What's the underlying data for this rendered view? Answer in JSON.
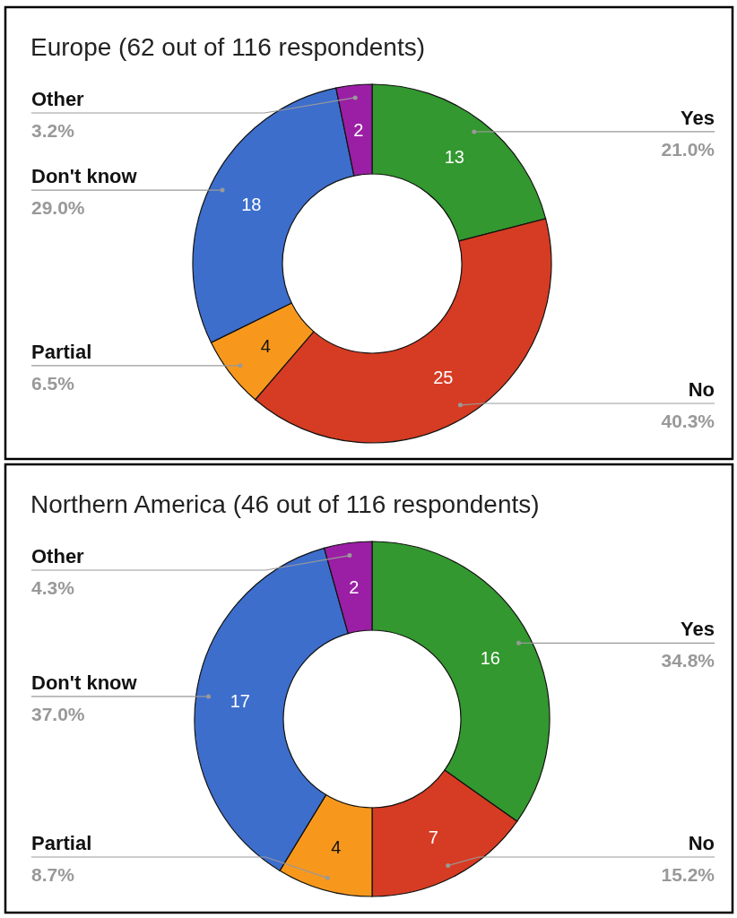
{
  "chart_data": [
    {
      "type": "donut",
      "title": "Europe (62 out of 116 respondents)",
      "categories": [
        "Yes",
        "No",
        "Partial",
        "Don't know",
        "Other"
      ],
      "values": [
        13,
        25,
        4,
        18,
        2
      ],
      "colors": [
        "#33982f",
        "#d63c23",
        "#f7981d",
        "#3d6ecc",
        "#9b1fa4"
      ],
      "data_labels": true,
      "annotations": [
        {
          "text": "21.0%",
          "x": "Yes"
        },
        {
          "text": "40.3%",
          "x": "No"
        },
        {
          "text": "6.5%",
          "x": "Partial"
        },
        {
          "text": "29.0%",
          "x": "Don't know"
        },
        {
          "text": "3.2%",
          "x": "Other"
        }
      ]
    },
    {
      "type": "donut",
      "title": "Northern America (46 out of 116 respondents)",
      "categories": [
        "Yes",
        "No",
        "Partial",
        "Don't know",
        "Other"
      ],
      "values": [
        16,
        7,
        4,
        17,
        2
      ],
      "colors": [
        "#33982f",
        "#d63c23",
        "#f7981d",
        "#3d6ecc",
        "#9b1fa4"
      ],
      "data_labels": true,
      "annotations": [
        {
          "text": "34.8%",
          "x": "Yes"
        },
        {
          "text": "15.2%",
          "x": "No"
        },
        {
          "text": "8.7%",
          "x": "Partial"
        },
        {
          "text": "37.0%",
          "x": "Don't know"
        },
        {
          "text": "4.3%",
          "x": "Other"
        }
      ]
    }
  ]
}
